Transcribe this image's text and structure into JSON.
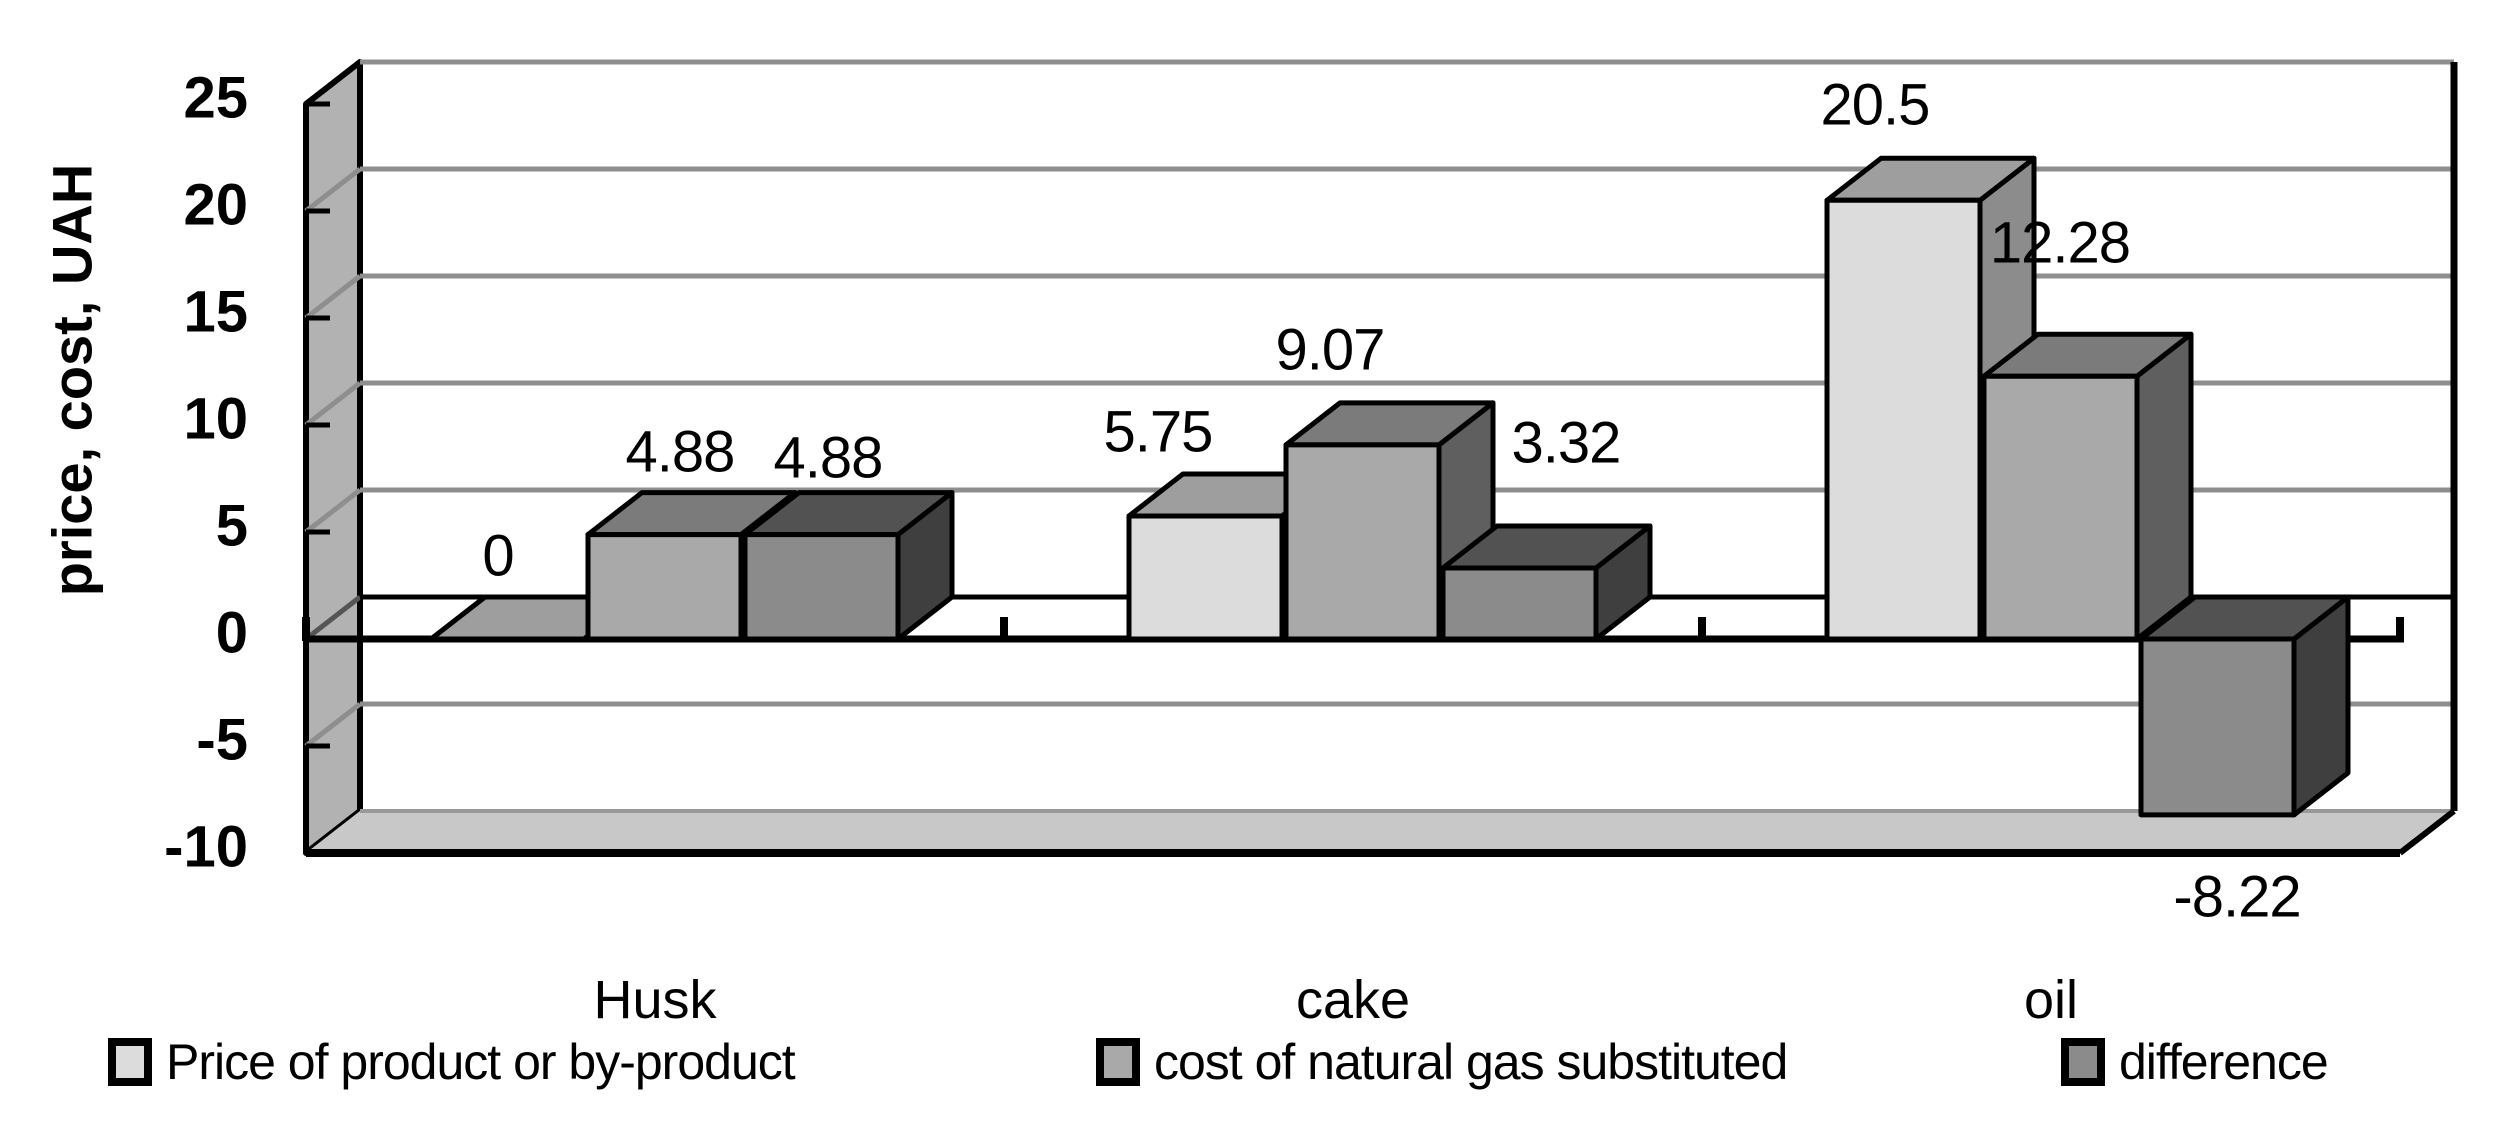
{
  "chart_data": {
    "type": "bar",
    "projection": "3d-clustered",
    "title": "",
    "ylabel": "price, cost, UAH",
    "categories": [
      "Husk",
      "cake",
      "oil"
    ],
    "series": [
      {
        "name": "Price of product or by-product",
        "values": [
          0,
          5.75,
          20.5
        ],
        "colors": {
          "front": "#dcdcdc",
          "top": "#9e9e9e",
          "side": "#8c8c8c"
        }
      },
      {
        "name": "cost of natural gas substituted",
        "values": [
          4.88,
          9.07,
          12.28
        ],
        "colors": {
          "front": "#a9a9a9",
          "top": "#7b7b7b",
          "side": "#5f5f5f"
        }
      },
      {
        "name": "difference",
        "values": [
          4.88,
          3.32,
          -8.22
        ],
        "colors": {
          "front": "#8b8b8b",
          "top": "#525252",
          "side": "#3f3f3f"
        }
      }
    ],
    "data_labels": [
      [
        "0",
        "5.75",
        "20.5"
      ],
      [
        "4.88",
        "9.07",
        "12.28"
      ],
      [
        "4.88",
        "3.32",
        "-8.22"
      ]
    ],
    "yticks": [
      "25",
      "20",
      "15",
      "10",
      "5",
      "0",
      "-5",
      "-10"
    ],
    "ytick_values": [
      25,
      20,
      15,
      10,
      5,
      0,
      -5,
      -10
    ],
    "ylim": [
      -10,
      25
    ],
    "ytick_step": 5,
    "grid": true,
    "legend_position": "bottom",
    "axis_color": "#000000",
    "gridline_color": "#8e8e8e",
    "wall_color": "#b2b2b2",
    "floor_color": "#c8c8c8",
    "background_color": "#ffffff"
  }
}
